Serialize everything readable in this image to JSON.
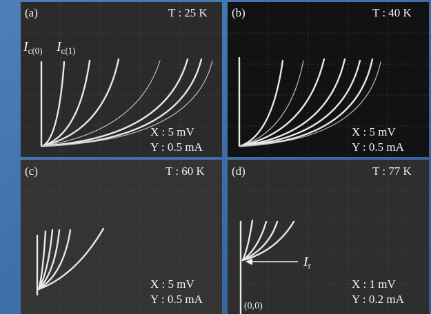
{
  "panels": [
    {
      "label": "(a)",
      "temperature": "T : 25 K",
      "x_scale": "X : 5  mV",
      "y_scale": "Y : 0.5 mA",
      "annotations": [
        {
          "symbol": "I",
          "subscript": "c(0)"
        },
        {
          "symbol": "I",
          "subscript": "c(1)"
        }
      ]
    },
    {
      "label": "(b)",
      "temperature": "T : 40 K",
      "x_scale": "X : 5  mV",
      "y_scale": "Y : 0.5 mA"
    },
    {
      "label": "(c)",
      "temperature": "T : 60 K",
      "x_scale": "X : 5  mV",
      "y_scale": "Y : 0.5 mA"
    },
    {
      "label": "(d)",
      "temperature": "T : 77 K",
      "x_scale": "X : 1  mV",
      "y_scale": "Y : 0.2 mA",
      "annotations": [
        {
          "symbol": "I",
          "subscript": "r"
        },
        {
          "text": "(0,0)"
        }
      ]
    }
  ]
}
